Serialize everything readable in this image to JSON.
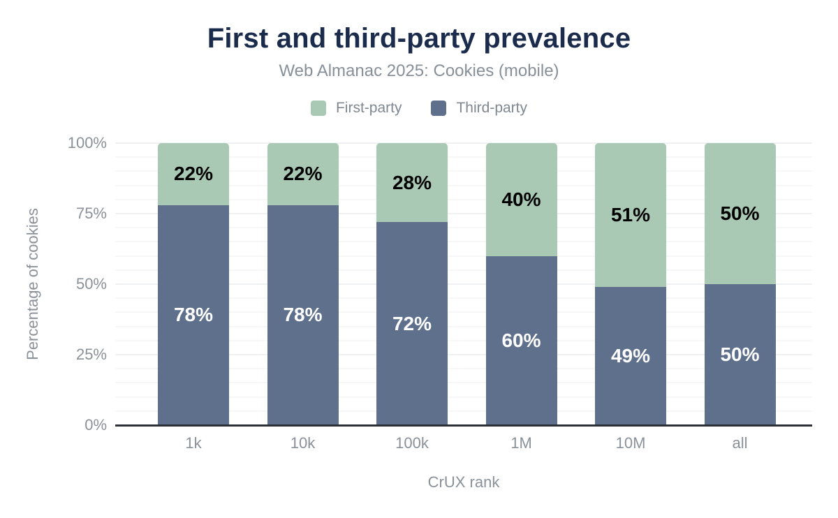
{
  "title": "First and third-party prevalence",
  "subtitle": "Web Almanac 2025: Cookies (mobile)",
  "legend": [
    {
      "label": "First-party",
      "color": "#a9c9b5"
    },
    {
      "label": "Third-party",
      "color": "#5f708d"
    }
  ],
  "chart_data": {
    "type": "bar",
    "stacked": true,
    "title": "First and third-party prevalence",
    "subtitle": "Web Almanac 2025: Cookies (mobile)",
    "categories": [
      "1k",
      "10k",
      "100k",
      "1M",
      "10M",
      "all"
    ],
    "series": [
      {
        "name": "Third-party",
        "color": "#5f708d",
        "label_color": "#ffffff",
        "values": [
          78,
          78,
          72,
          60,
          49,
          50
        ]
      },
      {
        "name": "First-party",
        "color": "#a9c9b5",
        "label_color": "#000000",
        "values": [
          22,
          22,
          28,
          40,
          51,
          50
        ]
      }
    ],
    "value_label_format": "%",
    "xlabel": "CrUX rank",
    "ylabel": "Percentage of cookies",
    "ylim": [
      0,
      100
    ],
    "yticks": [
      0,
      25,
      50,
      75,
      100
    ],
    "ytick_format": "%",
    "grid": "horizontal, minor every 5%, major every 25%",
    "legend_position": "top center"
  },
  "colors": {
    "title_text": "#1b2b4c",
    "muted_text": "#878f99",
    "tick_text": "#8a9199",
    "axis_line": "#2b2f36",
    "grid_minor": "#f7f7f7",
    "grid_major": "#eef0f1",
    "background": "#ffffff"
  }
}
